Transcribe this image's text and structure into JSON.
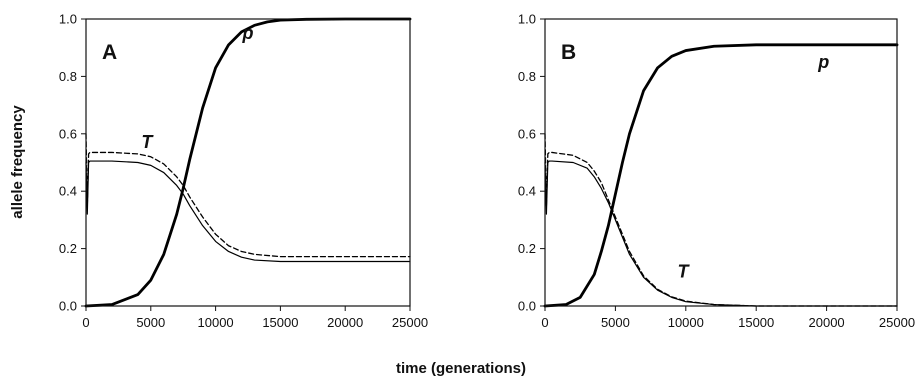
{
  "figure": {
    "ylabel": "allele frequency",
    "xlabel": "time (generations)"
  },
  "chart_data": [
    {
      "type": "line",
      "panel_label": "A",
      "xlim": [
        0,
        25000
      ],
      "ylim": [
        0,
        1
      ],
      "xticks": [
        "0",
        "5000",
        "10000",
        "15000",
        "20000",
        "25000"
      ],
      "yticks": [
        "0.0",
        "0.2",
        "0.4",
        "0.6",
        "0.8",
        "1.0"
      ],
      "xlabel": "time (generations)",
      "ylabel": "allele frequency",
      "series": [
        {
          "name": "p",
          "style": "thick-solid",
          "x": [
            0,
            2000,
            4000,
            5000,
            6000,
            7000,
            7500,
            8000,
            9000,
            10000,
            11000,
            12000,
            13000,
            14000,
            15000,
            17000,
            20000,
            25000
          ],
          "y": [
            0.0,
            0.005,
            0.04,
            0.09,
            0.18,
            0.32,
            0.41,
            0.51,
            0.69,
            0.83,
            0.91,
            0.955,
            0.978,
            0.99,
            0.996,
            0.999,
            1.0,
            1.0
          ]
        },
        {
          "name": "T",
          "style": "thin-solid",
          "x": [
            0,
            100,
            200,
            300,
            500,
            2000,
            4000,
            5000,
            6000,
            7000,
            7500,
            8000,
            9000,
            10000,
            11000,
            12000,
            13000,
            15000,
            20000,
            25000
          ],
          "y": [
            0.5,
            0.32,
            0.5,
            0.505,
            0.505,
            0.505,
            0.5,
            0.49,
            0.465,
            0.42,
            0.39,
            0.35,
            0.28,
            0.225,
            0.19,
            0.17,
            0.16,
            0.155,
            0.155,
            0.155
          ]
        },
        {
          "name": "",
          "style": "thin-dashed",
          "x": [
            0,
            100,
            200,
            300,
            500,
            2000,
            4000,
            5000,
            6000,
            7000,
            7500,
            8000,
            9000,
            10000,
            11000,
            12000,
            13000,
            15000,
            20000,
            25000
          ],
          "y": [
            0.6,
            0.35,
            0.53,
            0.535,
            0.535,
            0.535,
            0.53,
            0.52,
            0.495,
            0.45,
            0.42,
            0.38,
            0.31,
            0.25,
            0.21,
            0.19,
            0.18,
            0.172,
            0.172,
            0.172
          ]
        }
      ],
      "annotations": [
        {
          "text": "p",
          "x": 12500,
          "y": 0.93
        },
        {
          "text": "T",
          "x": 4700,
          "y": 0.55
        }
      ]
    },
    {
      "type": "line",
      "panel_label": "B",
      "xlim": [
        0,
        25000
      ],
      "ylim": [
        0,
        1
      ],
      "xticks": [
        "0",
        "5000",
        "10000",
        "15000",
        "20000",
        "25000"
      ],
      "yticks": [
        "0.0",
        "0.2",
        "0.4",
        "0.6",
        "0.8",
        "1.0"
      ],
      "xlabel": "time (generations)",
      "ylabel": "allele frequency",
      "series": [
        {
          "name": "p",
          "style": "thick-solid",
          "x": [
            0,
            1500,
            2500,
            3500,
            4000,
            4500,
            5000,
            5500,
            6000,
            7000,
            8000,
            9000,
            10000,
            12000,
            15000,
            20000,
            25000
          ],
          "y": [
            0.0,
            0.005,
            0.03,
            0.11,
            0.19,
            0.28,
            0.39,
            0.5,
            0.6,
            0.75,
            0.83,
            0.87,
            0.89,
            0.905,
            0.91,
            0.91,
            0.91
          ]
        },
        {
          "name": "T",
          "style": "thin-solid",
          "x": [
            0,
            100,
            200,
            300,
            500,
            2000,
            3000,
            3500,
            4000,
            4500,
            5000,
            5500,
            6000,
            7000,
            8000,
            9000,
            10000,
            12000,
            15000,
            20000,
            25000
          ],
          "y": [
            0.5,
            0.32,
            0.5,
            0.505,
            0.505,
            0.5,
            0.48,
            0.45,
            0.41,
            0.36,
            0.3,
            0.24,
            0.18,
            0.1,
            0.055,
            0.03,
            0.015,
            0.005,
            0.0,
            0.0,
            0.0
          ]
        },
        {
          "name": "",
          "style": "thin-dashed",
          "x": [
            0,
            100,
            200,
            300,
            500,
            2000,
            3000,
            3500,
            4000,
            4500,
            5000,
            5500,
            6000,
            7000,
            8000,
            9000,
            10000,
            12000,
            15000,
            20000,
            25000
          ],
          "y": [
            0.6,
            0.35,
            0.53,
            0.535,
            0.535,
            0.525,
            0.5,
            0.47,
            0.43,
            0.37,
            0.31,
            0.25,
            0.19,
            0.105,
            0.058,
            0.032,
            0.017,
            0.005,
            0.0,
            0.0,
            0.0
          ]
        }
      ],
      "annotations": [
        {
          "text": "p",
          "x": 19800,
          "y": 0.83
        },
        {
          "text": "T",
          "x": 9800,
          "y": 0.1
        }
      ]
    }
  ]
}
